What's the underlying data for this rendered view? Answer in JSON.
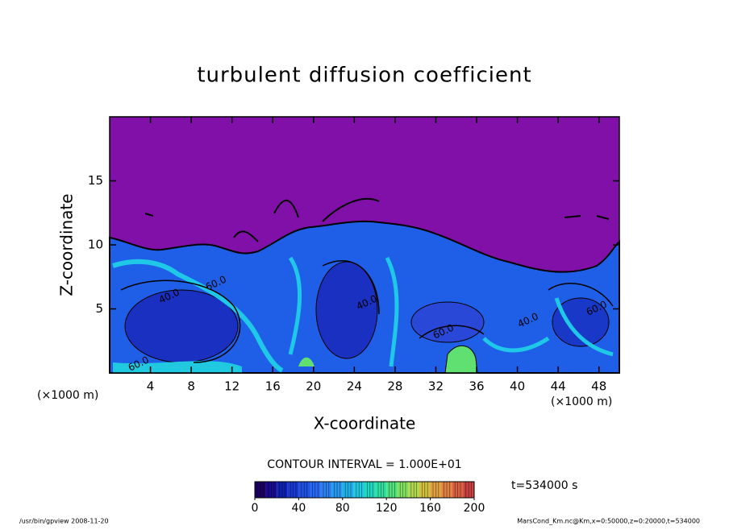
{
  "chart_data": {
    "type": "contour",
    "title": "turbulent diffusion coefficient",
    "xlabel": "X-coordinate",
    "ylabel": "Z-coordinate",
    "x_unit": "(×1000 m)",
    "xlim": [
      0,
      50
    ],
    "ylim": [
      0,
      20
    ],
    "xticks": [
      4,
      8,
      12,
      16,
      20,
      24,
      28,
      32,
      36,
      40,
      44,
      48
    ],
    "yticks": [
      5,
      10,
      15
    ],
    "contour_interval": "CONTOUR INTERVAL = 1.000E+01",
    "time_label": "t=534000 s",
    "contour_labels": [
      {
        "value": 60,
        "label": "60.0"
      },
      {
        "value": 40,
        "label": "40.0"
      },
      {
        "value": 60,
        "label": "60.0"
      },
      {
        "value": 40,
        "label": "40.0"
      },
      {
        "value": 60,
        "label": "60.0"
      },
      {
        "value": 40,
        "label": "40.0"
      },
      {
        "value": 60,
        "label": "60.0"
      }
    ],
    "colorbar": {
      "range": [
        0,
        200
      ],
      "ticks": [
        0,
        40,
        80,
        120,
        160,
        200
      ],
      "colors": [
        "#1a0060",
        "#1a0a90",
        "#1020b0",
        "#1838d0",
        "#2050e0",
        "#2868f0",
        "#2c80f0",
        "#2898f0",
        "#20b0e8",
        "#20c8e0",
        "#20d8c0",
        "#30e0a0",
        "#50e080",
        "#80e060",
        "#b0d850",
        "#d0c040",
        "#e0a040",
        "#e08040",
        "#d86040",
        "#c84040"
      ]
    },
    "footer_left": "/usr/bin/gpview   2008-11-20",
    "footer_right": "MarsCond_Km.nc@Km,x=0:50000,z=0:20000,t=534000"
  }
}
